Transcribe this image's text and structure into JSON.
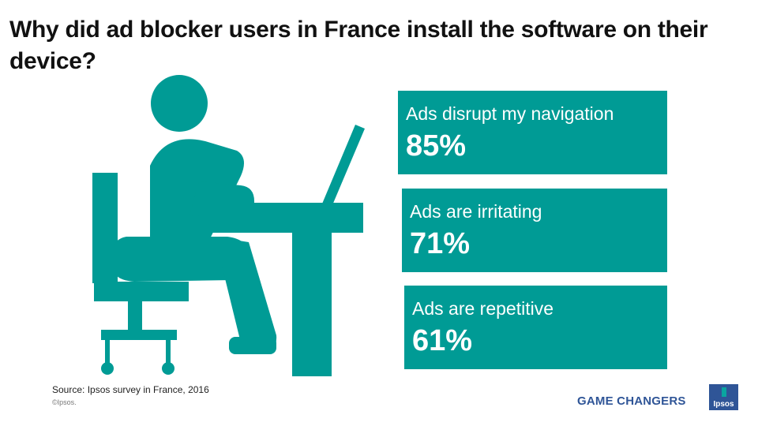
{
  "title": "Why did ad blocker users in France install the software on their device?",
  "chart_data": {
    "type": "table",
    "items": [
      {
        "label": "Ads disrupt my navigation",
        "value_text": "85%",
        "value": 85
      },
      {
        "label": "Ads are irritating",
        "value_text": "71%",
        "value": 71
      },
      {
        "label": "Ads are repetitive",
        "value_text": "61%",
        "value": 61
      }
    ]
  },
  "footer": {
    "source": "Source: Ipsos survey in France, 2016",
    "copyright": "©Ipsos.",
    "tagline": "GAME CHANGERS"
  },
  "logo": {
    "text": "Ipsos"
  },
  "colors": {
    "accent": "#009b95",
    "tagline": "#2f5597",
    "logo": "#2f5597"
  }
}
